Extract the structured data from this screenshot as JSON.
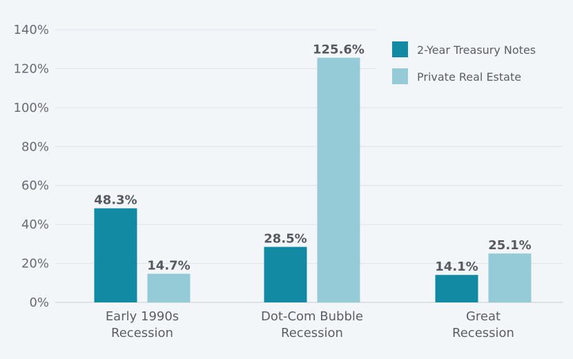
{
  "chart_data": {
    "type": "bar",
    "title": "",
    "xlabel": "",
    "ylabel": "",
    "categories": [
      [
        "Early 1990s",
        "Recession"
      ],
      [
        "Dot-Com Bubble",
        "Recession"
      ],
      [
        "Great",
        "Recession"
      ]
    ],
    "series": [
      {
        "name": "2-Year Treasury Notes",
        "values": [
          48.3,
          28.5,
          14.1
        ],
        "labels": [
          "48.3%",
          "28.5%",
          "14.1%"
        ],
        "color": "#138aa3"
      },
      {
        "name": "Private Real Estate",
        "values": [
          14.7,
          125.6,
          25.1
        ],
        "labels": [
          "14.7%",
          "125.6%",
          "25.1%"
        ],
        "color": "#94cbd7"
      }
    ],
    "ylim": [
      0,
      140
    ],
    "yticks": [
      0,
      20,
      40,
      60,
      80,
      100,
      120,
      140
    ],
    "ytick_labels": [
      "0%",
      "20%",
      "40%",
      "60%",
      "80%",
      "100%",
      "120%",
      "140%"
    ],
    "grid": true,
    "legend_position": "top-right"
  }
}
